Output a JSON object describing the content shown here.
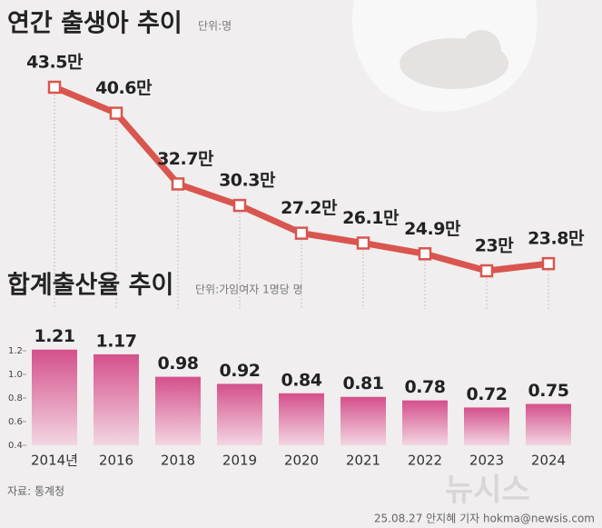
{
  "chart_data": [
    {
      "type": "line",
      "title": "연간 출생아 추이",
      "unit": "단위:명",
      "values": [
        43.5,
        40.6,
        32.7,
        30.3,
        27.2,
        26.1,
        24.9,
        23,
        23.8
      ],
      "value_labels": [
        "43.5만",
        "40.6만",
        "32.7만",
        "30.3만",
        "27.2만",
        "26.1만",
        "24.9만",
        "23만",
        "23.8만"
      ],
      "color": "#d9554f"
    },
    {
      "type": "bar",
      "title": "합계출산율 추이",
      "unit": "단위:가임여자 1명당 명",
      "categories": [
        "2014년",
        "2016",
        "2018",
        "2019",
        "2020",
        "2021",
        "2022",
        "2023",
        "2024"
      ],
      "values": [
        1.21,
        1.17,
        0.98,
        0.92,
        0.84,
        0.81,
        0.78,
        0.72,
        0.75
      ],
      "color": "#d4508b",
      "ylim": [
        0.4,
        1.3
      ],
      "yticks": [
        0.4,
        0.6,
        0.8,
        {
          "value": 1,
          "label": "1.0"
        },
        1.2
      ]
    }
  ],
  "footer": {
    "source": "자료: 통계청",
    "credit": "25.08.27 안지혜 기자 hokma@newsis.com",
    "watermark": "뉴시스"
  }
}
